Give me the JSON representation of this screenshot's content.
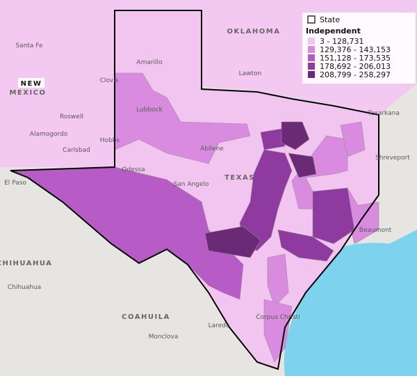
{
  "legend": {
    "state_label": "State",
    "title": "Independent",
    "classes": [
      {
        "label": "3 -  128,731",
        "color": "#f2c4f0"
      },
      {
        "label": "129,376 -  143,153",
        "color": "#d98be0"
      },
      {
        "label": "151,128 -  173,535",
        "color": "#b75bc6"
      },
      {
        "label": "178,692 -  206,013",
        "color": "#8e3a9e"
      },
      {
        "label": "208,799 -  258,297",
        "color": "#6b2a75"
      }
    ]
  },
  "places": [
    "OKLAHOMA",
    "NEW",
    "MEXICO",
    "TEXAS",
    "CHIHUAHUA",
    "COAHUILA",
    "Santa Fe",
    "Amarillo",
    "Lawton",
    "Clovis",
    "Lubbock",
    "Roswell",
    "Alamogordo",
    "Carlsbad",
    "Hobbs",
    "Odessa",
    "Abilene",
    "San Angelo",
    "El Paso",
    "Chihuahua",
    "Monclova",
    "Laredo",
    "Corpus Christi",
    "Shreveport",
    "Texarkana",
    "Beaumont"
  ]
}
